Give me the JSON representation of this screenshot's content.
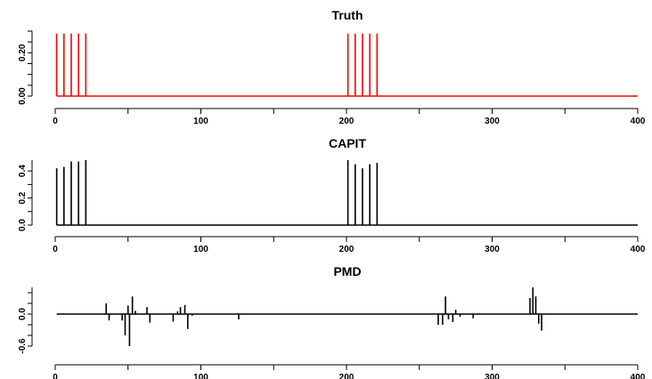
{
  "chart_data": [
    {
      "type": "line",
      "title": "Truth",
      "color": "#ff0000",
      "xlim": [
        0,
        400
      ],
      "ylim": [
        0,
        0.3
      ],
      "x_ticks": [
        0,
        100,
        200,
        300,
        400
      ],
      "x_tick_labels": [
        "0",
        "100",
        "200",
        "300",
        "400"
      ],
      "y_ticks": [
        0.0,
        0.2
      ],
      "y_tick_labels": [
        "0.00",
        "0.20"
      ],
      "baseline": 0,
      "spikes": [
        {
          "x": 1,
          "y": 0.2887
        },
        {
          "x": 6,
          "y": 0.2887
        },
        {
          "x": 11,
          "y": 0.2887
        },
        {
          "x": 16,
          "y": 0.2887
        },
        {
          "x": 21,
          "y": 0.2887
        },
        {
          "x": 201,
          "y": 0.2887
        },
        {
          "x": 206,
          "y": 0.2887
        },
        {
          "x": 211,
          "y": 0.2887
        },
        {
          "x": 216,
          "y": 0.2887
        },
        {
          "x": 221,
          "y": 0.2887
        }
      ]
    },
    {
      "type": "line",
      "title": "CAPIT",
      "color": "#000000",
      "xlim": [
        0,
        400
      ],
      "ylim": [
        0,
        0.48
      ],
      "x_ticks": [
        0,
        100,
        200,
        300,
        400
      ],
      "x_tick_labels": [
        "0",
        "100",
        "200",
        "300",
        "400"
      ],
      "y_ticks": [
        0.0,
        0.2,
        0.4
      ],
      "y_tick_labels": [
        "0.0",
        "0.2",
        "0.4"
      ],
      "baseline": 0,
      "spikes": [
        {
          "x": 1,
          "y": 0.42
        },
        {
          "x": 6,
          "y": 0.43
        },
        {
          "x": 11,
          "y": 0.47
        },
        {
          "x": 16,
          "y": 0.47
        },
        {
          "x": 21,
          "y": 0.48
        },
        {
          "x": 201,
          "y": 0.48
        },
        {
          "x": 206,
          "y": 0.45
        },
        {
          "x": 211,
          "y": 0.42
        },
        {
          "x": 216,
          "y": 0.45
        },
        {
          "x": 221,
          "y": 0.46
        }
      ]
    },
    {
      "type": "line",
      "title": "PMD",
      "color": "#000000",
      "xlim": [
        0,
        400
      ],
      "ylim": [
        -0.6,
        0.5
      ],
      "x_ticks": [
        0,
        100,
        200,
        300,
        400
      ],
      "x_tick_labels": [
        "0",
        "100",
        "200",
        "300",
        "400"
      ],
      "y_ticks": [
        -0.6,
        -0.4,
        -0.2,
        0.0,
        0.2,
        0.4
      ],
      "y_tick_labels": [
        "-0.6",
        "",
        "",
        "0.0",
        "",
        ""
      ],
      "baseline": 0,
      "spikes": [
        {
          "x": 35,
          "y": 0.2
        },
        {
          "x": 37,
          "y": -0.12
        },
        {
          "x": 46,
          "y": -0.12
        },
        {
          "x": 48,
          "y": -0.4
        },
        {
          "x": 50,
          "y": 0.16
        },
        {
          "x": 51,
          "y": -0.6
        },
        {
          "x": 53,
          "y": 0.33
        },
        {
          "x": 55,
          "y": 0.06
        },
        {
          "x": 63,
          "y": 0.13
        },
        {
          "x": 65,
          "y": -0.16
        },
        {
          "x": 81,
          "y": -0.14
        },
        {
          "x": 84,
          "y": 0.05
        },
        {
          "x": 86,
          "y": 0.13
        },
        {
          "x": 89,
          "y": 0.17
        },
        {
          "x": 91,
          "y": -0.28
        },
        {
          "x": 94,
          "y": -0.03
        },
        {
          "x": 126,
          "y": -0.1
        },
        {
          "x": 263,
          "y": -0.2
        },
        {
          "x": 266,
          "y": -0.2
        },
        {
          "x": 268,
          "y": 0.33
        },
        {
          "x": 270,
          "y": -0.1
        },
        {
          "x": 273,
          "y": -0.15
        },
        {
          "x": 275,
          "y": 0.08
        },
        {
          "x": 278,
          "y": -0.05
        },
        {
          "x": 287,
          "y": -0.08
        },
        {
          "x": 326,
          "y": 0.3
        },
        {
          "x": 328,
          "y": 0.5
        },
        {
          "x": 330,
          "y": 0.33
        },
        {
          "x": 332,
          "y": -0.18
        },
        {
          "x": 334,
          "y": -0.31
        }
      ]
    }
  ]
}
